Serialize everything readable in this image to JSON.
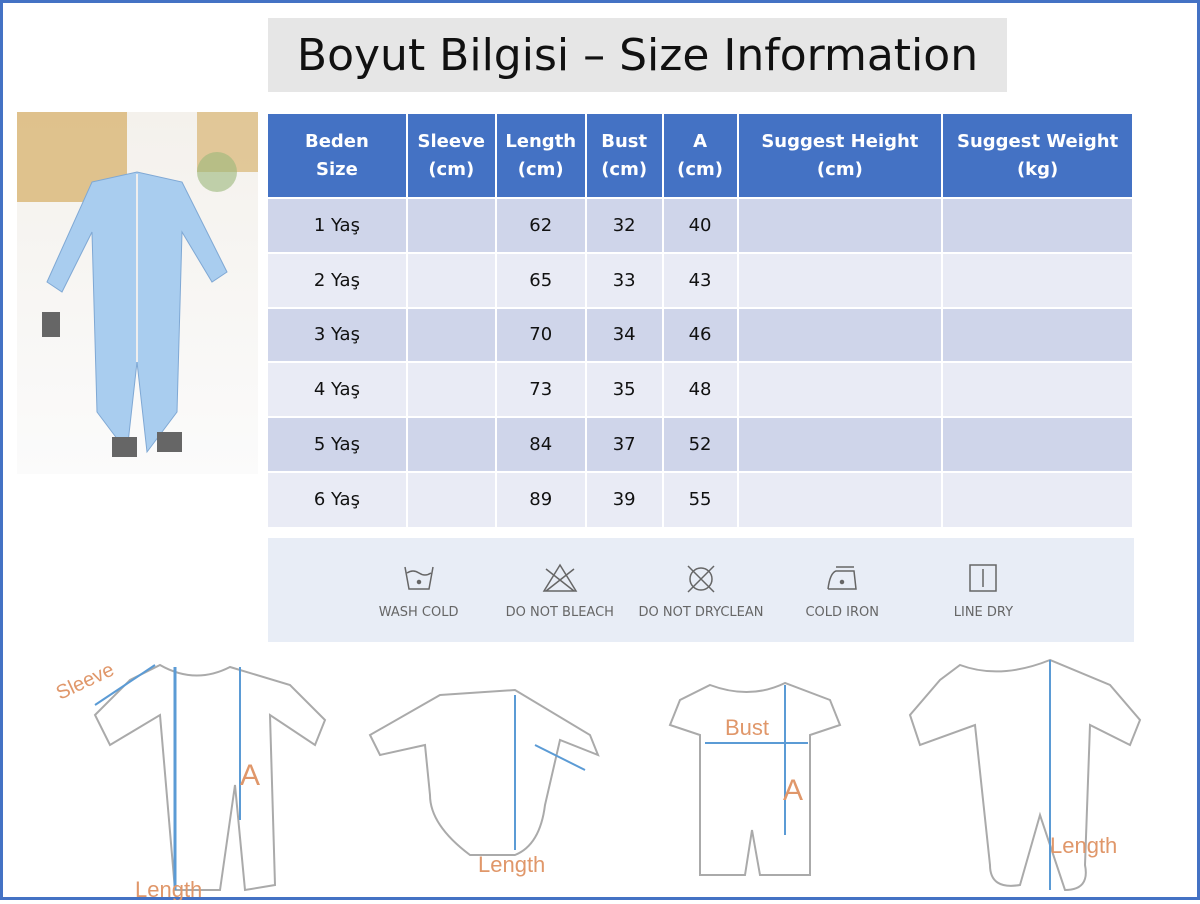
{
  "title": "Boyut Bilgisi – Size Information",
  "table": {
    "headers": [
      [
        "Beden",
        "Size"
      ],
      [
        "Sleeve",
        "(cm)"
      ],
      [
        "Length",
        "(cm)"
      ],
      [
        "Bust",
        "(cm)"
      ],
      [
        "A",
        "(cm)"
      ],
      [
        "Suggest Height",
        "(cm)"
      ],
      [
        "Suggest Weight",
        "(kg)"
      ]
    ],
    "rows": [
      [
        "1 Yaş",
        "",
        "62",
        "32",
        "40",
        "",
        ""
      ],
      [
        "2 Yaş",
        "",
        "65",
        "33",
        "43",
        "",
        ""
      ],
      [
        "3 Yaş",
        "",
        "70",
        "34",
        "46",
        "",
        ""
      ],
      [
        "4 Yaş",
        "",
        "73",
        "35",
        "48",
        "",
        ""
      ],
      [
        "5 Yaş",
        "",
        "84",
        "37",
        "52",
        "",
        ""
      ],
      [
        "6 Yaş",
        "",
        "89",
        "39",
        "55",
        "",
        ""
      ]
    ]
  },
  "care": [
    {
      "icon": "wash-cold-icon",
      "label": "WASH COLD"
    },
    {
      "icon": "do-not-bleach-icon",
      "label": "DO NOT BLEACH"
    },
    {
      "icon": "do-not-dryclean-icon",
      "label": "DO NOT DRYCLEAN"
    },
    {
      "icon": "cold-iron-icon",
      "label": "COLD IRON"
    },
    {
      "icon": "line-dry-icon",
      "label": "LINE DRY"
    }
  ],
  "diagram_labels": {
    "sleeve": "Sleeve",
    "length": "Length",
    "a": "A",
    "bust": "Bust"
  },
  "colors": {
    "header": "#4472c4",
    "row_odd": "#cfd5ea",
    "row_even": "#e9ebf5",
    "measure": "#5b9bd5",
    "label": "#e0976a"
  }
}
